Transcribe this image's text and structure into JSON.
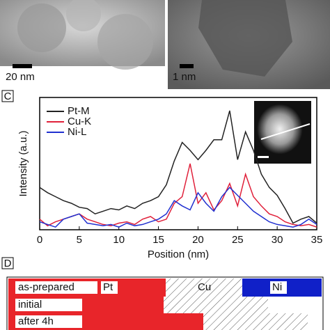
{
  "images": {
    "left_scale": "20 nm",
    "right_scale": "1 nm"
  },
  "panel_c_label": "C",
  "chart_data": {
    "type": "line",
    "x_label": "Position (nm)",
    "y_label": "Intensity (a.u.)",
    "x": [
      0,
      1,
      2,
      3,
      4,
      5,
      6,
      7,
      8,
      9,
      10,
      11,
      12,
      13,
      14,
      15,
      16,
      17,
      18,
      19,
      20,
      21,
      22,
      23,
      24,
      25,
      26,
      27,
      28,
      29,
      30,
      31,
      32,
      33,
      34,
      35
    ],
    "series": [
      {
        "name": "Pt-M",
        "color": "#222222",
        "values": [
          32,
          28,
          25,
          22,
          20,
          17,
          16,
          12,
          14,
          16,
          15,
          18,
          16,
          20,
          22,
          25,
          34,
          52,
          66,
          60,
          53,
          60,
          68,
          68,
          90,
          53,
          74,
          60,
          42,
          32,
          26,
          16,
          5,
          8,
          10,
          5
        ]
      },
      {
        "name": "Cu-K",
        "color": "#e0203a",
        "values": [
          8,
          3,
          6,
          8,
          10,
          12,
          8,
          6,
          4,
          3,
          5,
          6,
          4,
          8,
          10,
          6,
          8,
          20,
          25,
          50,
          20,
          28,
          15,
          22,
          35,
          18,
          42,
          25,
          18,
          12,
          10,
          6,
          4,
          3,
          4,
          2
        ]
      },
      {
        "name": "Ni-L",
        "color": "#2030d0",
        "values": [
          6,
          4,
          2,
          8,
          10,
          12,
          5,
          4,
          3,
          4,
          2,
          5,
          3,
          4,
          6,
          8,
          12,
          22,
          18,
          15,
          28,
          20,
          14,
          25,
          32,
          26,
          20,
          14,
          10,
          6,
          4,
          3,
          2,
          4,
          8,
          4
        ]
      }
    ],
    "xlim": [
      0,
      35
    ],
    "xticks": [
      0,
      5,
      10,
      15,
      20,
      25,
      30,
      35
    ],
    "ylim": [
      0,
      100
    ]
  },
  "panel_d": {
    "label": "D",
    "rows": [
      "as-prepared",
      "initial",
      "after 4h"
    ],
    "elements": [
      "Pt",
      "Cu",
      "Ni"
    ]
  }
}
